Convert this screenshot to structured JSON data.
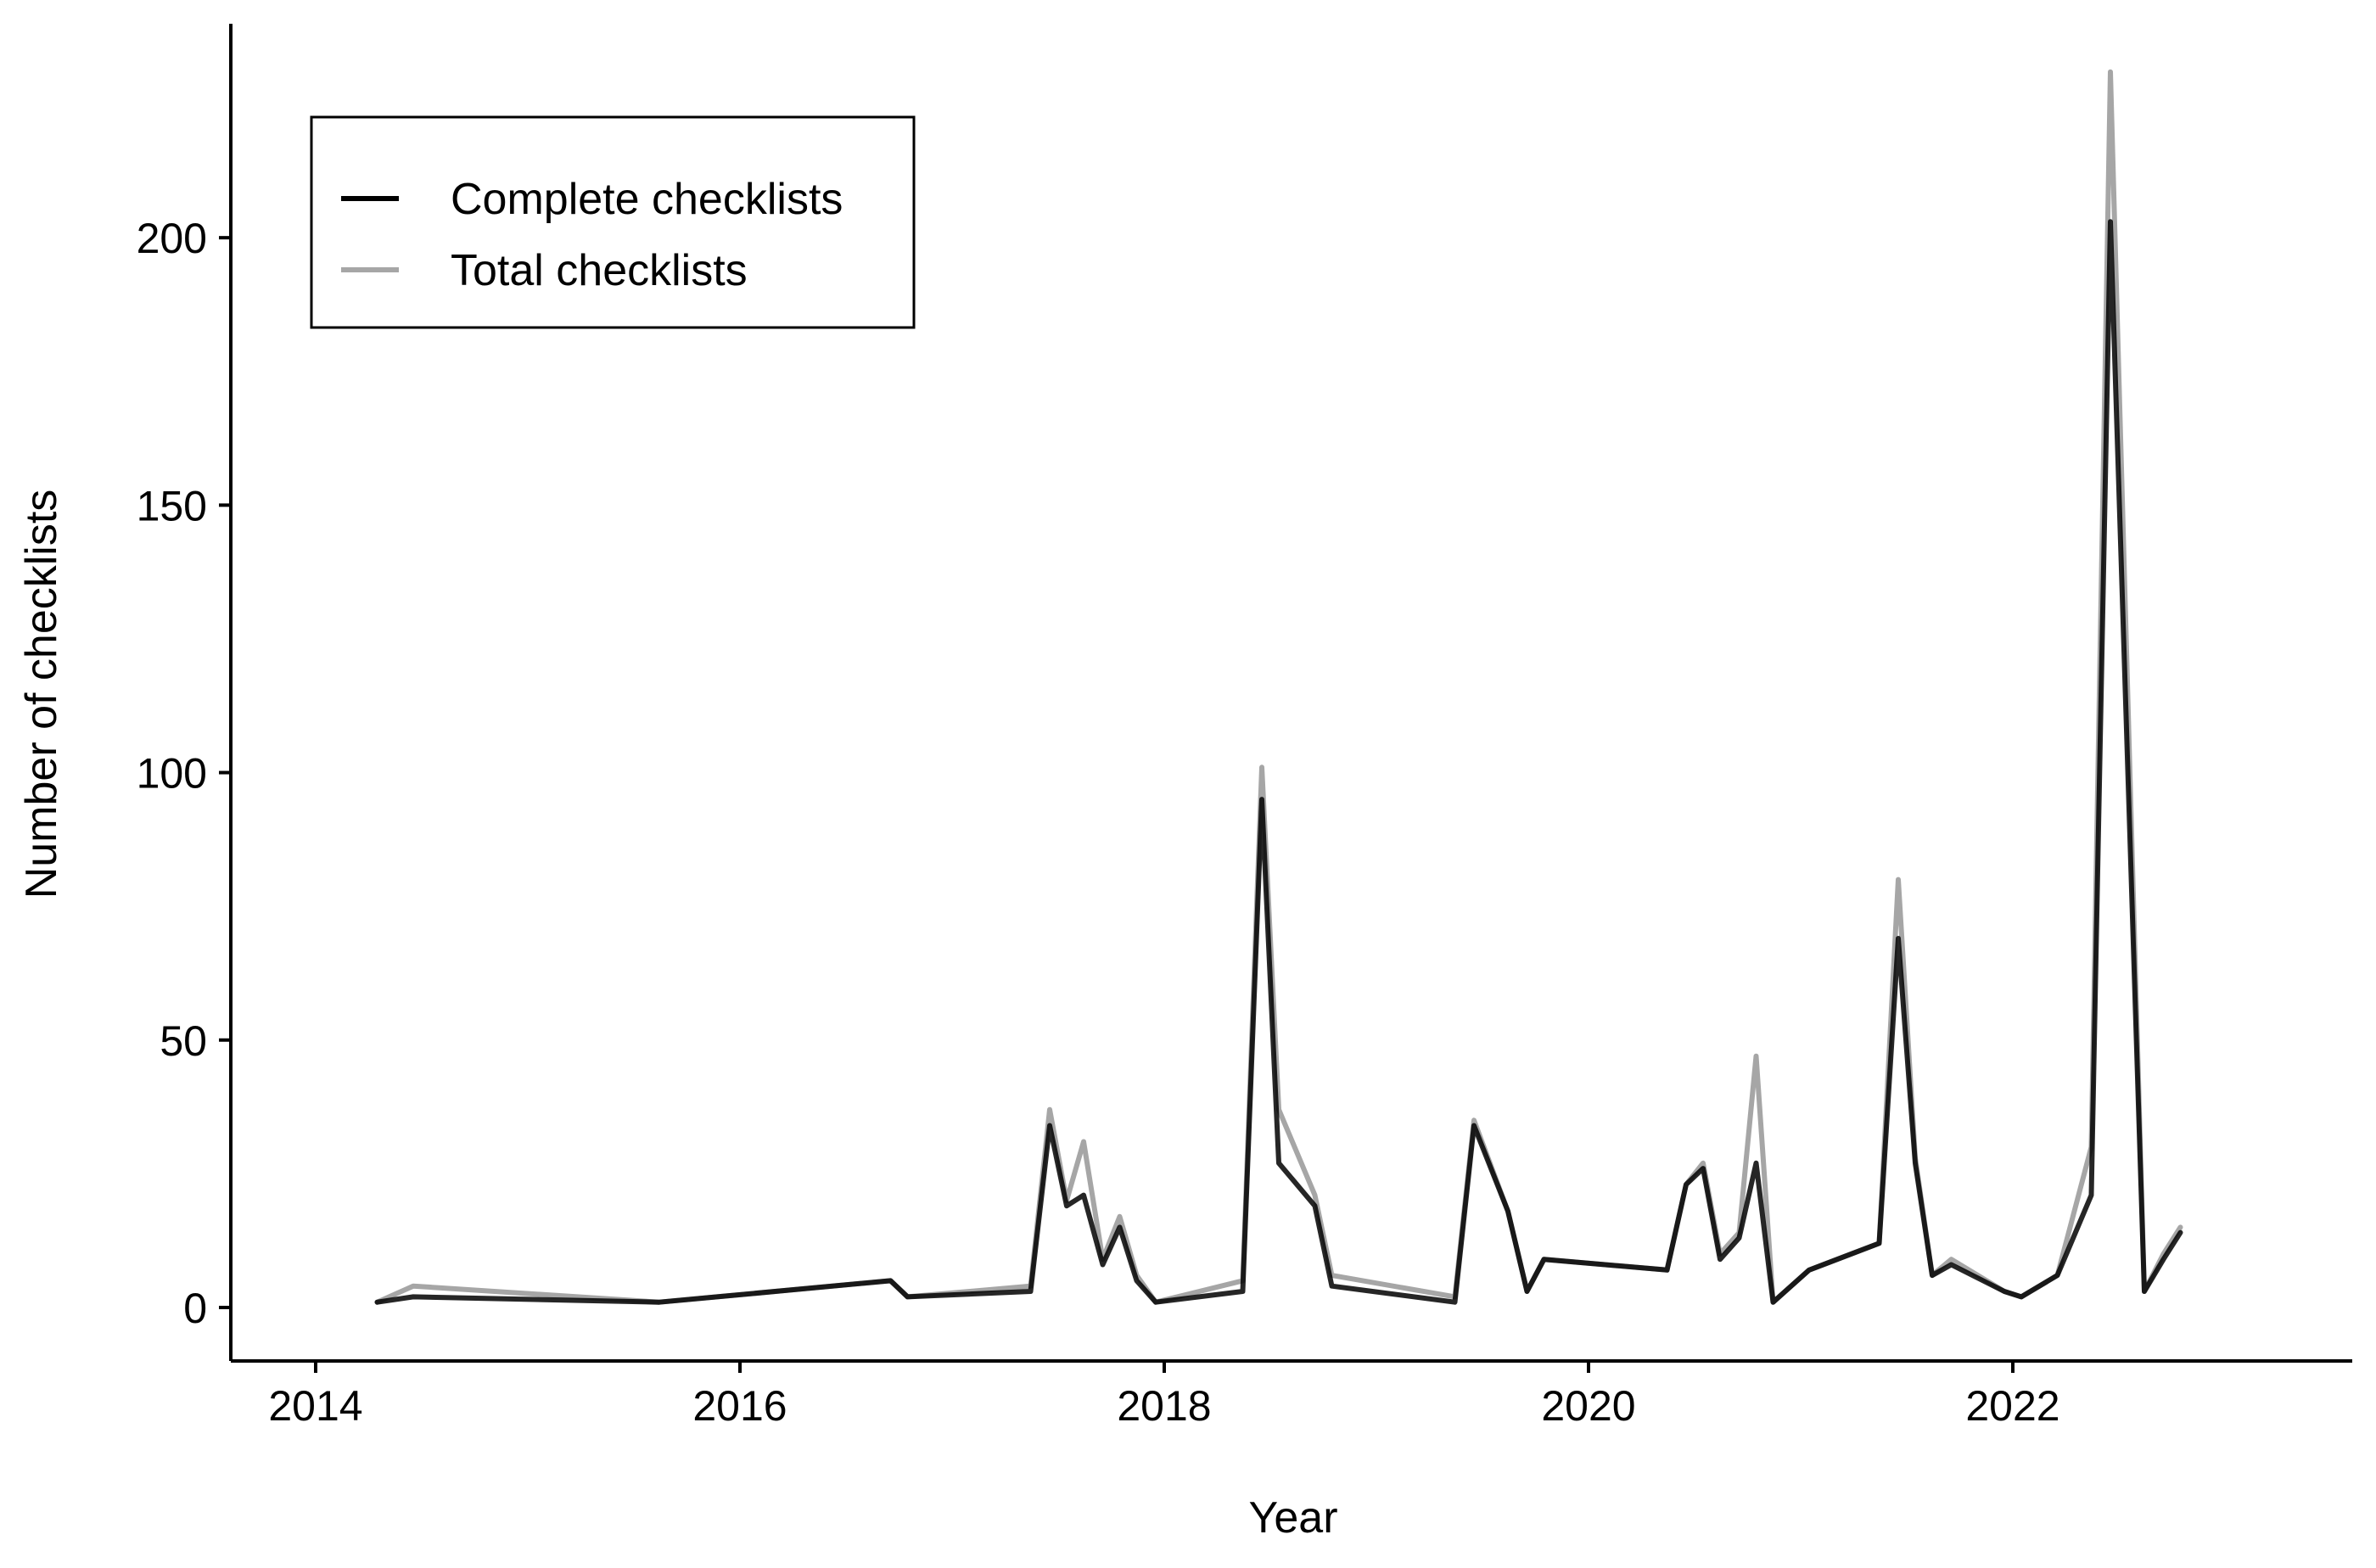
{
  "chart_data": {
    "type": "line",
    "title": "",
    "xlabel": "Year",
    "ylabel": "Number of checklists",
    "xlim": [
      2013.6,
      2023.6
    ],
    "ylim": [
      -10,
      240
    ],
    "x_ticks": [
      2014,
      2016,
      2018,
      2020,
      2022
    ],
    "x_tick_labels": [
      "2014",
      "2016",
      "2018",
      "2020",
      "2022"
    ],
    "y_ticks": [
      0,
      50,
      100,
      150,
      200
    ],
    "y_tick_labels": [
      "0",
      "50",
      "100",
      "150",
      "200"
    ],
    "grid": false,
    "legend_position": "top-left",
    "series": [
      {
        "name": "Total checklists",
        "color": "#a6a6a6",
        "points": [
          [
            2014.29,
            1
          ],
          [
            2014.46,
            4
          ],
          [
            2015.62,
            1
          ],
          [
            2016.71,
            5
          ],
          [
            2016.79,
            2
          ],
          [
            2017.37,
            4
          ],
          [
            2017.46,
            37
          ],
          [
            2017.54,
            20
          ],
          [
            2017.62,
            31
          ],
          [
            2017.71,
            9
          ],
          [
            2017.79,
            17
          ],
          [
            2017.87,
            6
          ],
          [
            2017.96,
            1
          ],
          [
            2018.37,
            5
          ],
          [
            2018.46,
            101
          ],
          [
            2018.54,
            37
          ],
          [
            2018.71,
            21
          ],
          [
            2018.79,
            6
          ],
          [
            2019.37,
            2
          ],
          [
            2019.46,
            35
          ],
          [
            2019.62,
            18
          ],
          [
            2019.71,
            3
          ],
          [
            2019.79,
            9
          ],
          [
            2020.37,
            7
          ],
          [
            2020.46,
            23
          ],
          [
            2020.54,
            27
          ],
          [
            2020.62,
            10
          ],
          [
            2020.71,
            14
          ],
          [
            2020.79,
            47
          ],
          [
            2020.87,
            1
          ],
          [
            2021.04,
            7
          ],
          [
            2021.37,
            12
          ],
          [
            2021.46,
            80
          ],
          [
            2021.54,
            28
          ],
          [
            2021.62,
            6
          ],
          [
            2021.71,
            9
          ],
          [
            2021.96,
            3
          ],
          [
            2022.04,
            2
          ],
          [
            2022.21,
            6
          ],
          [
            2022.37,
            30
          ],
          [
            2022.46,
            231
          ],
          [
            2022.62,
            3
          ],
          [
            2022.71,
            10
          ],
          [
            2022.79,
            15
          ]
        ]
      },
      {
        "name": "Complete checklists",
        "color": "#000000",
        "points": [
          [
            2014.29,
            1
          ],
          [
            2014.46,
            2
          ],
          [
            2015.62,
            1
          ],
          [
            2016.71,
            5
          ],
          [
            2016.79,
            2
          ],
          [
            2017.37,
            3
          ],
          [
            2017.46,
            34
          ],
          [
            2017.54,
            19
          ],
          [
            2017.62,
            21
          ],
          [
            2017.71,
            8
          ],
          [
            2017.79,
            15
          ],
          [
            2017.87,
            5
          ],
          [
            2017.96,
            1
          ],
          [
            2018.37,
            3
          ],
          [
            2018.46,
            95
          ],
          [
            2018.54,
            27
          ],
          [
            2018.71,
            19
          ],
          [
            2018.79,
            4
          ],
          [
            2019.37,
            1
          ],
          [
            2019.46,
            34
          ],
          [
            2019.62,
            18
          ],
          [
            2019.71,
            3
          ],
          [
            2019.79,
            9
          ],
          [
            2020.37,
            7
          ],
          [
            2020.46,
            23
          ],
          [
            2020.54,
            26
          ],
          [
            2020.62,
            9
          ],
          [
            2020.71,
            13
          ],
          [
            2020.79,
            27
          ],
          [
            2020.87,
            1
          ],
          [
            2021.04,
            7
          ],
          [
            2021.37,
            12
          ],
          [
            2021.46,
            69
          ],
          [
            2021.54,
            27
          ],
          [
            2021.62,
            6
          ],
          [
            2021.71,
            8
          ],
          [
            2021.96,
            3
          ],
          [
            2022.04,
            2
          ],
          [
            2022.21,
            6
          ],
          [
            2022.37,
            21
          ],
          [
            2022.46,
            203
          ],
          [
            2022.62,
            3
          ],
          [
            2022.71,
            9
          ],
          [
            2022.79,
            14
          ]
        ]
      }
    ],
    "legend": [
      {
        "label": "Complete checklists",
        "color": "#000000"
      },
      {
        "label": "Total checklists",
        "color": "#a6a6a6"
      }
    ]
  }
}
